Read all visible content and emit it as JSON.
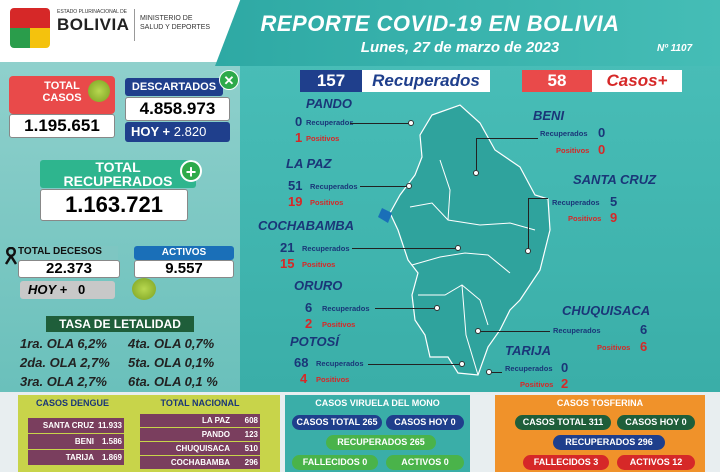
{
  "header": {
    "logo_line1": "ESTADO PLURINACIONAL DE",
    "logo_word": "BOLIVIA",
    "ministry_line1": "MINISTERIO DE",
    "ministry_line2": "SALUD Y DEPORTES",
    "title": "REPORTE COVID-19 EN BOLIVIA",
    "date": "Lunes, 27 de marzo de 2023",
    "report_number": "Nº 1107"
  },
  "left": {
    "total_casos_label_1": "TOTAL",
    "total_casos_label_2": "CASOS",
    "total_casos": "1.195.651",
    "descartados_label": "DESCARTADOS",
    "descartados": "4.858.973",
    "descartados_hoy_label": "HOY +",
    "descartados_hoy": "2.820",
    "total_recuperados_label_1": "TOTAL",
    "total_recuperados_label_2": "RECUPERADOS",
    "total_recuperados": "1.163.721",
    "total_decesos_label": "TOTAL DECESOS",
    "total_decesos": "22.373",
    "decesos_hoy_label": "HOY +",
    "decesos_hoy": "0",
    "activos_label": "ACTIVOS",
    "activos": "9.557",
    "letalidad_title": "TASA DE LETALIDAD",
    "letalidad": [
      [
        "1ra. OLA 6,2%",
        "4ta. OLA 0,7%"
      ],
      [
        "2da. OLA 2,7%",
        "5ta. OLA 0,1%"
      ],
      [
        "3ra. OLA 2,7%",
        "6ta. OLA 0,1 %"
      ]
    ]
  },
  "summary": {
    "recuperados": "157",
    "recuperados_label": "Recuperados",
    "casos": "58",
    "casos_label": "Casos+"
  },
  "labels": {
    "recuperados": "Recuperados",
    "positivos": "Positivos"
  },
  "departments": {
    "pando": {
      "name": "PANDO",
      "rec": "0",
      "pos": "1"
    },
    "lapaz": {
      "name": "LA PAZ",
      "rec": "51",
      "pos": "19"
    },
    "cochabamba": {
      "name": "COCHABAMBA",
      "rec": "21",
      "pos": "15"
    },
    "oruro": {
      "name": "ORURO",
      "rec": "6",
      "pos": "2"
    },
    "potosi": {
      "name": "POTOSÍ",
      "rec": "68",
      "pos": "4"
    },
    "beni": {
      "name": "BENI",
      "rec": "0",
      "pos": "0"
    },
    "santacruz": {
      "name": "SANTA CRUZ",
      "rec": "5",
      "pos": "9"
    },
    "chuquisaca": {
      "name": "CHUQUISACA",
      "rec": "6",
      "pos": "6"
    },
    "tarija": {
      "name": "TARIJA",
      "rec": "0",
      "pos": "2"
    }
  },
  "dengue": {
    "title": "CASOS DENGUE",
    "nacional_title": "TOTAL NACIONAL",
    "left": [
      [
        "SANTA CRUZ",
        "11.933"
      ],
      [
        "BENI",
        "1.586"
      ],
      [
        "TARIJA",
        "1.869"
      ]
    ],
    "right": [
      [
        "LA PAZ",
        "608"
      ],
      [
        "PANDO",
        "123"
      ],
      [
        "CHUQUISACA",
        "510"
      ],
      [
        "COCHABAMBA",
        "296"
      ]
    ]
  },
  "mono": {
    "title": "CASOS VIRUELA DEL MONO",
    "total_label": "CASOS TOTAL",
    "total": "265",
    "hoy_label": "CASOS HOY",
    "hoy": "0",
    "rec_label": "RECUPERADOS",
    "rec": "265",
    "fall_label": "FALLECIDOS",
    "fall": "0",
    "act_label": "ACTIVOS",
    "act": "0"
  },
  "tosferina": {
    "title": "CASOS TOSFERINA",
    "total_label": "CASOS TOTAL",
    "total": "311",
    "hoy_label": "CASOS HOY",
    "hoy": "0",
    "rec_label": "RECUPERADOS",
    "rec": "296",
    "fall_label": "FALLECIDOS",
    "fall": "3",
    "act_label": "ACTIVOS",
    "act": "12"
  },
  "colors": {
    "teal": "#3aaea8",
    "red": "#e94a4a",
    "navy": "#1f3f8c"
  }
}
